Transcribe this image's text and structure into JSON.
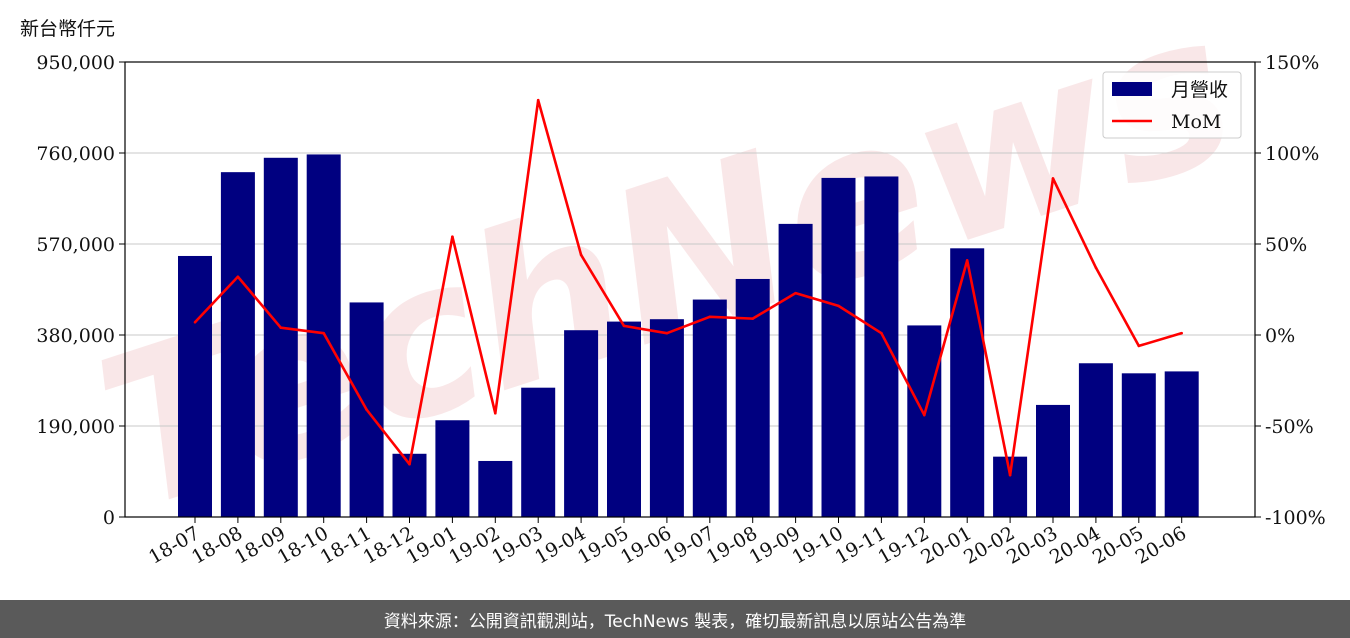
{
  "unit_label": "新台幣仟元",
  "footer": "資料來源：公開資訊觀測站，TechNews 製表，確切最新訊息以原站公告為準",
  "watermark": "TechNews",
  "chart_data": {
    "type": "bar",
    "categories": [
      "18-07",
      "18-08",
      "18-09",
      "18-10",
      "18-11",
      "18-12",
      "19-01",
      "19-02",
      "19-03",
      "19-04",
      "19-05",
      "19-06",
      "19-07",
      "19-08",
      "19-09",
      "19-10",
      "19-11",
      "19-12",
      "20-01",
      "20-02",
      "20-03",
      "20-04",
      "20-05",
      "20-06"
    ],
    "series": [
      {
        "name": "月營收",
        "type": "bar",
        "axis": "left",
        "color": "#000080",
        "values": [
          545000,
          720000,
          750000,
          757000,
          448000,
          132000,
          202000,
          117000,
          270000,
          390000,
          408000,
          413000,
          454000,
          497000,
          612000,
          708000,
          711000,
          400000,
          561000,
          126000,
          234000,
          321000,
          300000,
          304000
        ]
      },
      {
        "name": "MoM",
        "type": "line",
        "axis": "right",
        "color": "#ff0000",
        "values": [
          7,
          32,
          4,
          1,
          -41,
          -71,
          54,
          -43,
          129,
          44,
          5,
          1,
          10,
          9,
          23,
          16,
          1,
          -44,
          41,
          -77,
          86,
          37,
          -6,
          1
        ]
      }
    ],
    "left_axis": {
      "ylim": [
        0,
        950000
      ],
      "ticks": [
        "0",
        "190,000",
        "380,000",
        "570,000",
        "760,000",
        "950,000"
      ]
    },
    "right_axis": {
      "ylim": [
        -100,
        150
      ],
      "ticks": [
        "-100%",
        "-50%",
        "0%",
        "50%",
        "100%",
        "150%"
      ]
    },
    "grid": true,
    "legend_position": "top-right"
  }
}
